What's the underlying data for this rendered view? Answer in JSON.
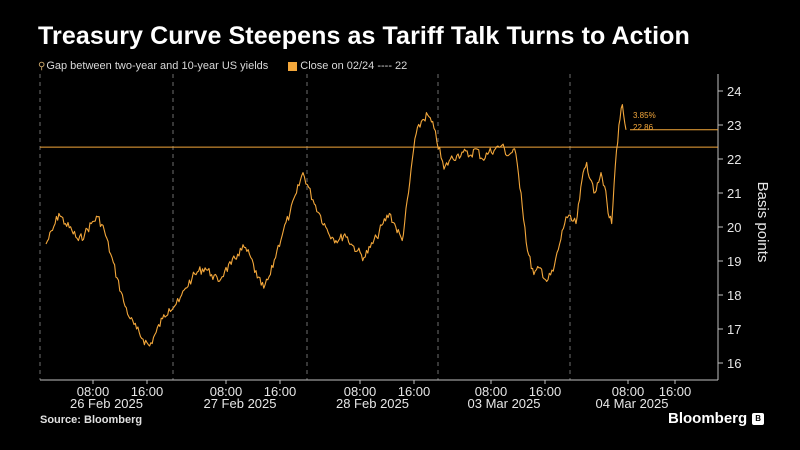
{
  "title": "Treasury Curve Steepens as Tariff Talk Turns to Action",
  "legend": {
    "series_icon": "pin-icon",
    "series_label": "Gap between two-year and 10-year US yields",
    "close_label": "Close on 02/24 ---- 22"
  },
  "source": "Source: Bloomberg",
  "brand": "Bloomberg",
  "colors": {
    "series": "#f3a73b",
    "background": "#000000",
    "axis": "#bfbfbf"
  },
  "chart_data": {
    "type": "line",
    "ylabel": "Basis points",
    "ylim": [
      15.5,
      24.5
    ],
    "yticks": [
      16,
      17,
      18,
      19,
      20,
      21,
      22,
      23,
      24
    ],
    "reference_line": {
      "value": 22.35,
      "label": "Close on 02/24 ---- 22"
    },
    "last_value_label": "22.86",
    "change_label": "3.85%",
    "days": [
      {
        "date": "26 Feb 2025",
        "times": [
          "08:00",
          "16:00"
        ]
      },
      {
        "date": "27 Feb 2025",
        "times": [
          "08:00",
          "16:00"
        ]
      },
      {
        "date": "28 Feb 2025",
        "times": [
          "08:00",
          "16:00"
        ]
      },
      {
        "date": "03 Mar 2025",
        "times": [
          "08:00",
          "16:00"
        ]
      },
      {
        "date": "04 Mar 2025",
        "times": [
          "08:00",
          "16:00"
        ]
      }
    ],
    "series": [
      {
        "name": "Gap between two-year and 10-year US yields",
        "day_values": [
          [
            19.5,
            19.9,
            20.4,
            20.1,
            19.9,
            19.6,
            19.8,
            20.1,
            20.3,
            19.9,
            19.2,
            18.5,
            17.8,
            17.3,
            17.0,
            16.7,
            16.5,
            16.9,
            17.3,
            17.6
          ],
          [
            17.8,
            18.2,
            18.5,
            18.7,
            18.8,
            18.6,
            18.4,
            18.7,
            18.9,
            19.2,
            19.4,
            19.1,
            18.5,
            18.2,
            18.6,
            19.3,
            19.9,
            20.4,
            21.0,
            21.6
          ],
          [
            20.8,
            20.4,
            20.0,
            19.7,
            19.6,
            19.8,
            19.5,
            19.3,
            19.1,
            19.4,
            19.7,
            20.1,
            20.4,
            20.0,
            19.6,
            21.0,
            22.6,
            23.1,
            23.3,
            22.9
          ],
          [
            21.7,
            22.0,
            22.1,
            22.2,
            22.1,
            22.3,
            22.0,
            22.2,
            22.3,
            22.4,
            22.1,
            22.3,
            21.0,
            19.3,
            18.6,
            18.8,
            18.4,
            18.7,
            19.5,
            20.3
          ],
          [
            20.1,
            20.8,
            21.6,
            21.9,
            21.4,
            21.0,
            21.3,
            21.6,
            21.2,
            20.4,
            20.1,
            21.8,
            23.0,
            23.6,
            22.86
          ]
        ]
      }
    ]
  }
}
